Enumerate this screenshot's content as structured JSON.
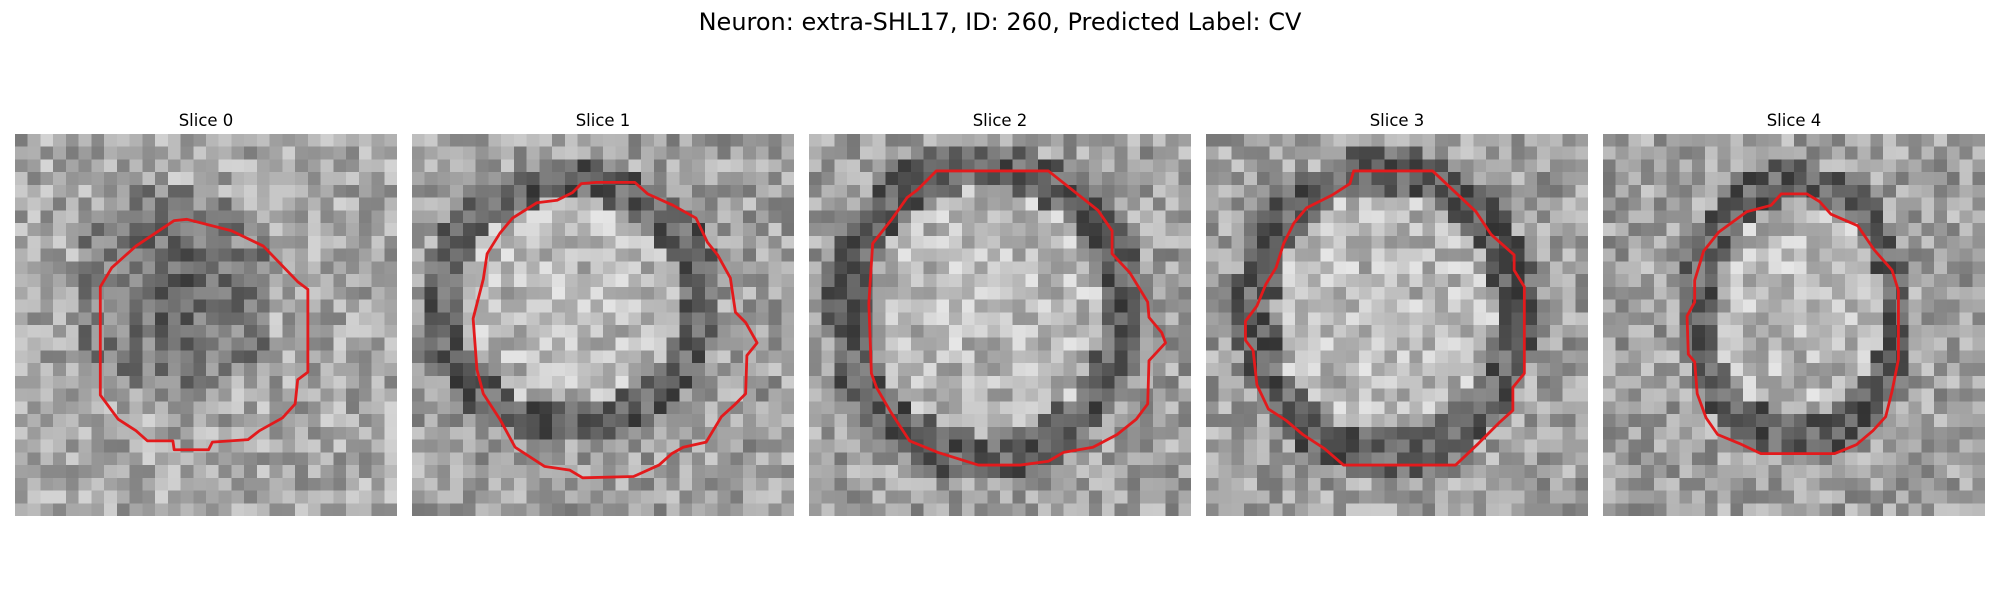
{
  "figure": {
    "title": "Neuron: extra-SHL17, ID: 260, Predicted Label: CV"
  },
  "contour_color": "#e31a1c",
  "panels": [
    {
      "title": "Slice 0",
      "membrane": "dark-fill",
      "seed": 11
    },
    {
      "title": "Slice 1",
      "membrane": "dark-ring",
      "seed": 23
    },
    {
      "title": "Slice 2",
      "membrane": "dark-ring",
      "seed": 37
    },
    {
      "title": "Slice 3",
      "membrane": "dark-ring",
      "seed": 41
    },
    {
      "title": "Slice 4",
      "membrane": "dark-ring",
      "seed": 59
    }
  ]
}
